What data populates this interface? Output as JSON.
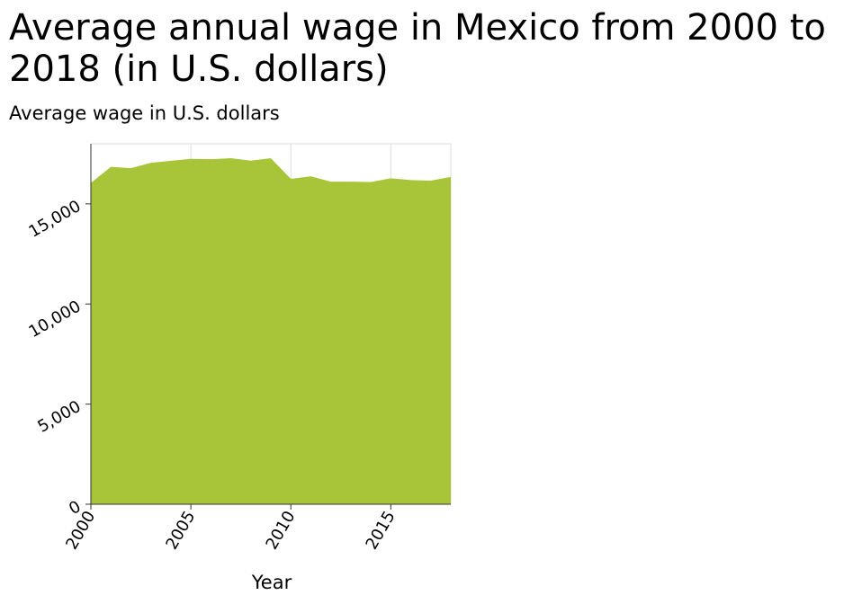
{
  "chart_data": {
    "type": "area",
    "title": "Average annual wage in Mexico from 2000 to 2018 (in U.S. dollars)",
    "ylabel": "Average wage in U.S. dollars",
    "xlabel": "Year",
    "x": [
      2000,
      2001,
      2002,
      2003,
      2004,
      2005,
      2006,
      2007,
      2008,
      2009,
      2010,
      2011,
      2012,
      2013,
      2014,
      2015,
      2016,
      2017,
      2018
    ],
    "values": [
      16050,
      16850,
      16780,
      17050,
      17150,
      17250,
      17230,
      17280,
      17160,
      17280,
      16250,
      16380,
      16110,
      16110,
      16090,
      16280,
      16190,
      16160,
      16350
    ],
    "xlim": [
      2000,
      2018
    ],
    "ylim": [
      0,
      18000
    ],
    "xticks": [
      2000,
      2005,
      2010,
      2015
    ],
    "xtick_labels": [
      "2000",
      "2005",
      "2010",
      "2015"
    ],
    "yticks": [
      0,
      5000,
      10000,
      15000
    ],
    "ytick_labels": [
      "0",
      "5,000",
      "10,000",
      "15,000"
    ],
    "grid": true,
    "fill_color": "#a8c53a",
    "grid_color": "#dddddd"
  }
}
